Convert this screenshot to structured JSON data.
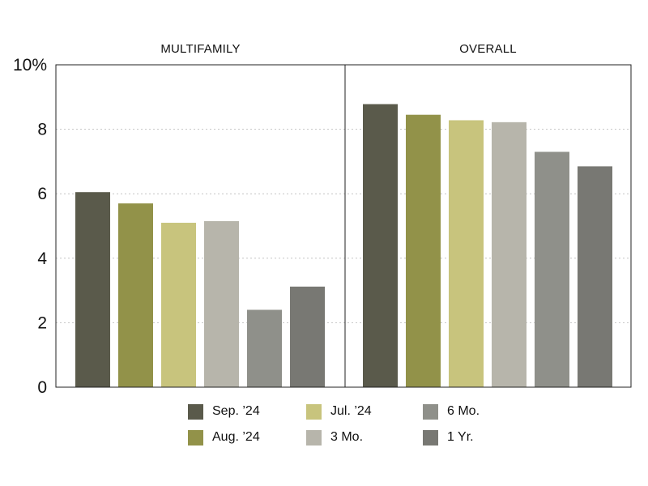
{
  "chart_data": {
    "type": "bar",
    "panels": [
      {
        "title": "MULTIFAMILY",
        "values": [
          6.05,
          5.7,
          5.1,
          5.15,
          2.4,
          3.12
        ]
      },
      {
        "title": "OVERALL",
        "values": [
          8.78,
          8.45,
          8.28,
          8.22,
          7.3,
          6.85
        ]
      }
    ],
    "series": [
      {
        "name": "Sep. ’24",
        "color": "#5a5a4b"
      },
      {
        "name": "Aug. ’24",
        "color": "#929249"
      },
      {
        "name": "Jul. ’24",
        "color": "#c8c47d"
      },
      {
        "name": "3 Mo.",
        "color": "#b7b5ab"
      },
      {
        "name": "6 Mo.",
        "color": "#8f908a"
      },
      {
        "name": "1 Yr.",
        "color": "#787873"
      }
    ],
    "ylim": [
      0,
      10
    ],
    "yticks": [
      "0",
      "2",
      "4",
      "6",
      "8",
      "10%"
    ],
    "ytick_values": [
      0,
      2,
      4,
      6,
      8,
      10
    ],
    "grid": true,
    "legend_position": "bottom"
  }
}
